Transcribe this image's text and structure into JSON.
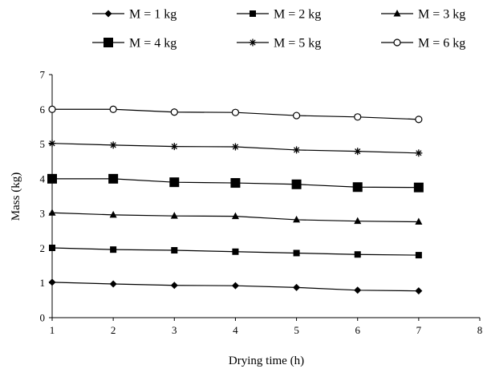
{
  "chart_data": {
    "type": "line",
    "xlabel": "Drying time (h)",
    "ylabel": "Mass (kg)",
    "xlim": [
      1,
      8
    ],
    "ylim": [
      0,
      7
    ],
    "x_ticks": [
      "1",
      "2",
      "3",
      "4",
      "5",
      "6",
      "7",
      "8"
    ],
    "y_ticks": [
      "0",
      "1",
      "2",
      "3",
      "4",
      "5",
      "6",
      "7"
    ],
    "grid": false,
    "legend_position": "top",
    "x": [
      1,
      2,
      3,
      4,
      5,
      6,
      7
    ],
    "series": [
      {
        "name": "M = 1 kg",
        "marker": "diamond",
        "values": [
          1.02,
          0.97,
          0.93,
          0.92,
          0.87,
          0.79,
          0.77
        ]
      },
      {
        "name": "M = 2 kg",
        "marker": "small-square",
        "values": [
          2.01,
          1.96,
          1.94,
          1.9,
          1.86,
          1.82,
          1.8
        ]
      },
      {
        "name": "M = 3 kg",
        "marker": "triangle",
        "values": [
          3.02,
          2.96,
          2.93,
          2.92,
          2.82,
          2.78,
          2.76
        ]
      },
      {
        "name": "M = 4 kg",
        "marker": "large-square",
        "values": [
          4.0,
          4.0,
          3.9,
          3.88,
          3.84,
          3.76,
          3.75
        ]
      },
      {
        "name": "M = 5 kg",
        "marker": "star",
        "values": [
          5.02,
          4.97,
          4.93,
          4.92,
          4.83,
          4.79,
          4.74
        ]
      },
      {
        "name": "M = 6 kg",
        "marker": "circle",
        "values": [
          6.0,
          6.0,
          5.92,
          5.91,
          5.82,
          5.78,
          5.71
        ]
      }
    ]
  }
}
